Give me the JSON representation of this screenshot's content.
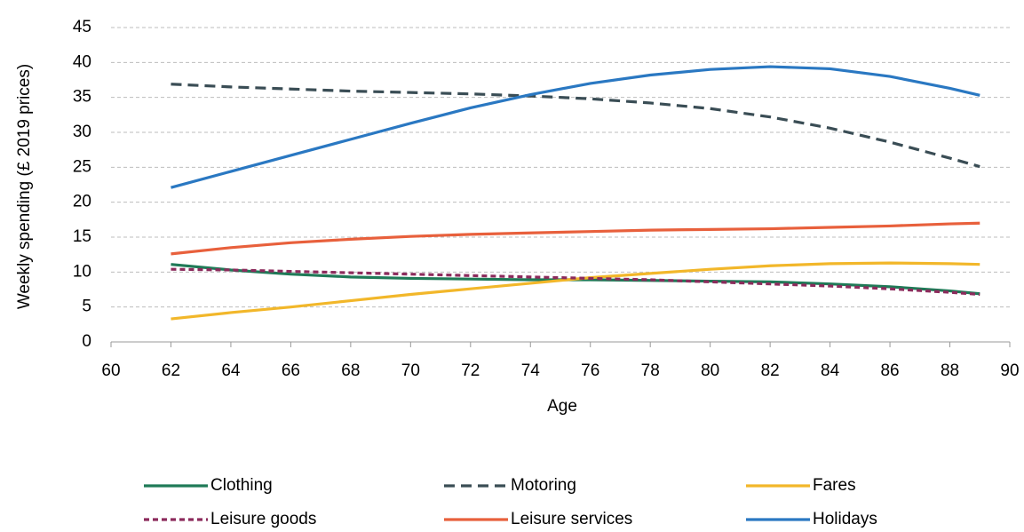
{
  "chart_data": {
    "type": "line",
    "x_label": "Age",
    "y_label": "Weekly spending (£ 2019 prices)",
    "x": [
      62,
      64,
      66,
      68,
      70,
      72,
      74,
      76,
      78,
      80,
      82,
      84,
      86,
      88,
      89
    ],
    "series": [
      {
        "name": "Clothing",
        "color": "#1f7a57",
        "style": "solid",
        "values": [
          11.1,
          10.3,
          9.7,
          9.3,
          9.1,
          9.0,
          8.9,
          8.9,
          8.8,
          8.7,
          8.6,
          8.3,
          7.9,
          7.3,
          6.9
        ]
      },
      {
        "name": "Motoring",
        "color": "#3a4d55",
        "style": "dashed",
        "values": [
          36.9,
          36.5,
          36.2,
          35.9,
          35.7,
          35.5,
          35.2,
          34.8,
          34.2,
          33.4,
          32.2,
          30.6,
          28.6,
          26.3,
          25.1
        ]
      },
      {
        "name": "Fares",
        "color": "#f2b72a",
        "style": "solid",
        "values": [
          3.3,
          4.2,
          5.0,
          5.9,
          6.8,
          7.6,
          8.4,
          9.2,
          9.8,
          10.4,
          10.9,
          11.2,
          11.3,
          11.2,
          11.1
        ]
      },
      {
        "name": "Leisure goods",
        "color": "#8c2b5c",
        "style": "dotted",
        "values": [
          10.4,
          10.3,
          10.1,
          9.9,
          9.7,
          9.5,
          9.3,
          9.1,
          8.9,
          8.6,
          8.3,
          8.0,
          7.6,
          7.1,
          6.8
        ]
      },
      {
        "name": "Leisure services",
        "color": "#e8603c",
        "style": "solid",
        "values": [
          12.6,
          13.5,
          14.2,
          14.7,
          15.1,
          15.4,
          15.6,
          15.8,
          16.0,
          16.1,
          16.2,
          16.4,
          16.6,
          16.9,
          17.0
        ]
      },
      {
        "name": "Holidays",
        "color": "#2a78c2",
        "style": "solid",
        "values": [
          22.1,
          24.4,
          26.7,
          29.0,
          31.3,
          33.5,
          35.4,
          37.0,
          38.2,
          39.0,
          39.4,
          39.1,
          38.0,
          36.3,
          35.3
        ]
      }
    ],
    "xlim": [
      60,
      90
    ],
    "xticks": [
      60,
      62,
      64,
      66,
      68,
      70,
      72,
      74,
      76,
      78,
      80,
      82,
      84,
      86,
      88,
      90
    ],
    "ylim": [
      0,
      45
    ],
    "yticks": [
      0,
      5,
      10,
      15,
      20,
      25,
      30,
      35,
      40,
      45
    ],
    "grid": true,
    "legend": "bottom"
  }
}
